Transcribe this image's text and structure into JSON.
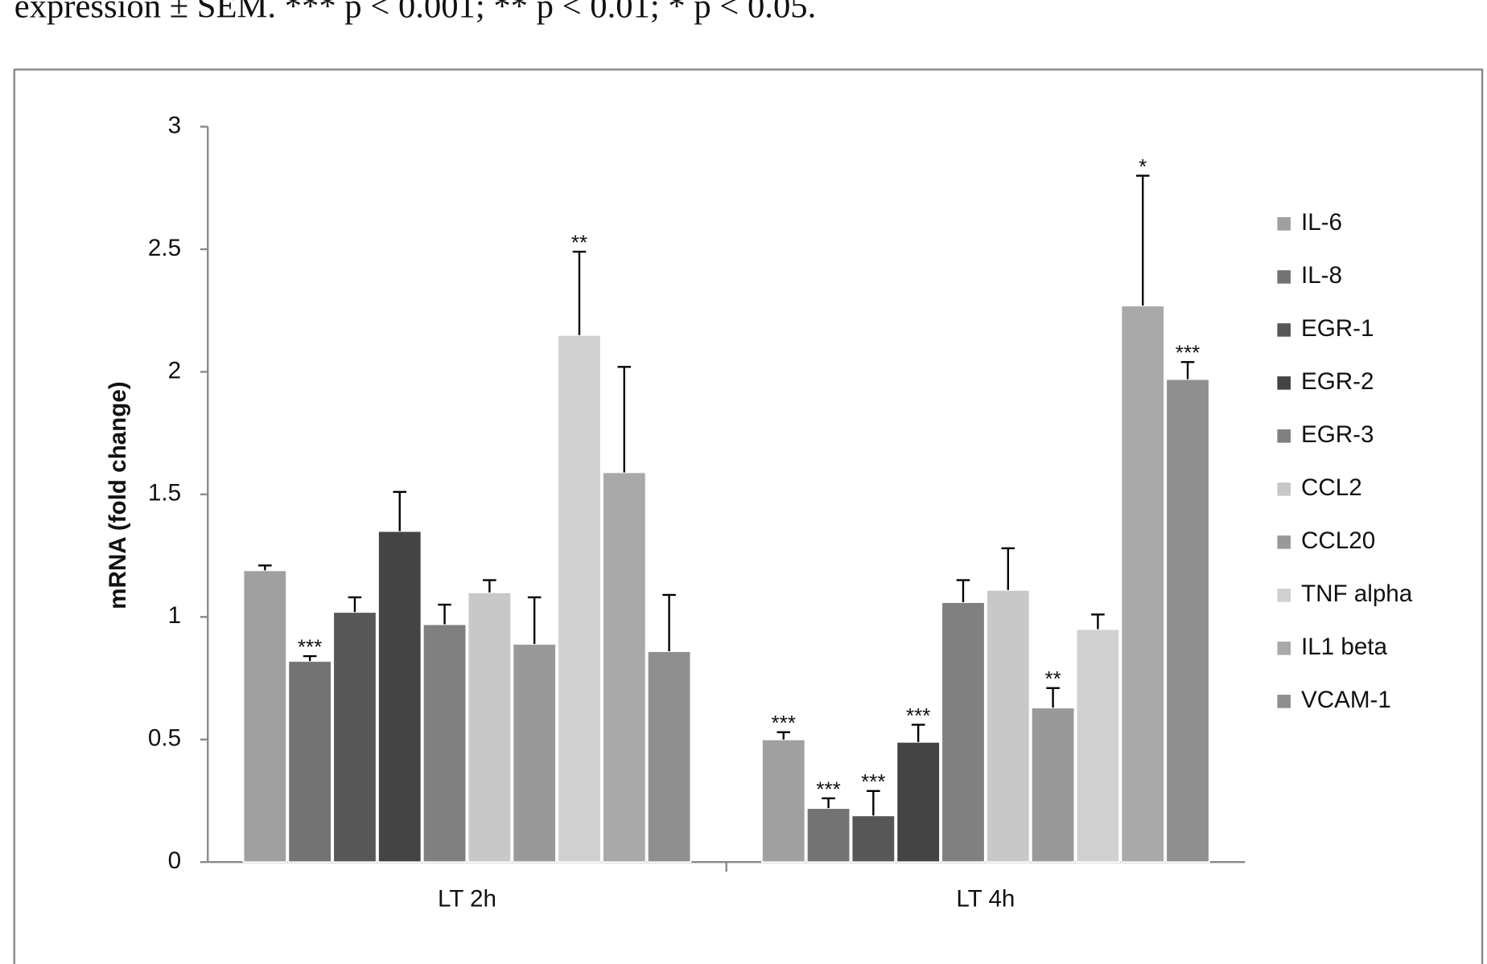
{
  "caption": "expression ± SEM. *** p < 0.001; ** p < 0.01; * p < 0.05.",
  "chart_data": {
    "type": "bar",
    "y_label": "mRNA (fold change)",
    "categories": [
      "LT 2h",
      "LT 4h"
    ],
    "ylim": [
      0,
      3
    ],
    "yticks": [
      0,
      0.5,
      1,
      1.5,
      2,
      2.5,
      3
    ],
    "legend": "right",
    "series": [
      {
        "name": "IL-6",
        "color": "#a0a0a0",
        "values": [
          1.19,
          0.5
        ],
        "errors": [
          0.02,
          0.03
        ],
        "significance": [
          null,
          "***"
        ]
      },
      {
        "name": "IL-8",
        "color": "#737373",
        "values": [
          0.82,
          0.22
        ],
        "errors": [
          0.02,
          0.04
        ],
        "significance": [
          "***",
          "***"
        ]
      },
      {
        "name": "EGR-1",
        "color": "#575757",
        "values": [
          1.02,
          0.19
        ],
        "errors": [
          0.06,
          0.1
        ],
        "significance": [
          null,
          "***"
        ]
      },
      {
        "name": "EGR-2",
        "color": "#444444",
        "values": [
          1.35,
          0.49
        ],
        "errors": [
          0.16,
          0.07
        ],
        "significance": [
          null,
          "***"
        ]
      },
      {
        "name": "EGR-3",
        "color": "#808080",
        "values": [
          0.97,
          1.06
        ],
        "errors": [
          0.08,
          0.09
        ],
        "significance": [
          null,
          null
        ]
      },
      {
        "name": "CCL2",
        "color": "#c8c8c8",
        "values": [
          1.1,
          1.11
        ],
        "errors": [
          0.05,
          0.17
        ],
        "significance": [
          null,
          null
        ]
      },
      {
        "name": "CCL20",
        "color": "#999999",
        "values": [
          0.89,
          0.63
        ],
        "errors": [
          0.19,
          0.08
        ],
        "significance": [
          null,
          "**"
        ]
      },
      {
        "name": "TNF alpha",
        "color": "#d0d0d0",
        "values": [
          2.15,
          0.95
        ],
        "errors": [
          0.34,
          0.06
        ],
        "significance": [
          "**",
          null
        ]
      },
      {
        "name": "IL1 beta",
        "color": "#a9a9a9",
        "values": [
          1.59,
          2.27
        ],
        "errors": [
          0.43,
          0.53
        ],
        "significance": [
          null,
          "*"
        ]
      },
      {
        "name": "VCAM-1",
        "color": "#8f8f8f",
        "values": [
          0.86,
          1.97
        ],
        "errors": [
          0.23,
          0.07
        ],
        "significance": [
          null,
          "***"
        ]
      }
    ]
  }
}
